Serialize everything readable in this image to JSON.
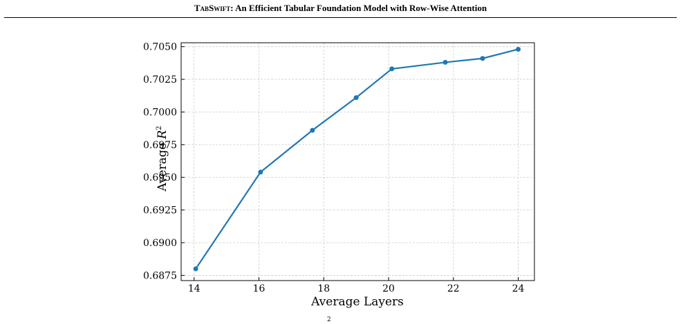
{
  "header": {
    "model": "TabSwift",
    "title": ": An Efficient Tabular Foundation Model with Row-Wise Attention"
  },
  "chart_data": {
    "type": "line",
    "xlabel": "Average Layers",
    "ylabel": {
      "text": "Average",
      "var": "R",
      "exp": "2"
    },
    "x": [
      14.05,
      16.05,
      17.65,
      19.0,
      20.1,
      21.75,
      22.9,
      24.0
    ],
    "series": [
      {
        "name": "Average R2",
        "color": "#1f77b4",
        "values": [
          0.688,
          0.6954,
          0.6986,
          0.7011,
          0.7033,
          0.7038,
          0.7041,
          0.7048
        ]
      }
    ],
    "xlim": [
      13.6,
      24.5
    ],
    "xticks": [
      14,
      16,
      18,
      20,
      22,
      24
    ],
    "ylim": [
      0.6871,
      0.7053
    ],
    "yticks": [
      {
        "value": 0.6875,
        "label": "0.6875"
      },
      {
        "value": 0.69,
        "label": "0.6900"
      },
      {
        "value": 0.6925,
        "label": "0.6925"
      },
      {
        "value": 0.695,
        "label": "0.6950"
      },
      {
        "value": 0.6975,
        "label": "0.6975"
      },
      {
        "value": 0.7,
        "label": "0.7000"
      },
      {
        "value": 0.7025,
        "label": "0.7025"
      },
      {
        "value": 0.705,
        "label": "0.7050"
      }
    ],
    "grid": true
  },
  "caption_fragment": "2"
}
